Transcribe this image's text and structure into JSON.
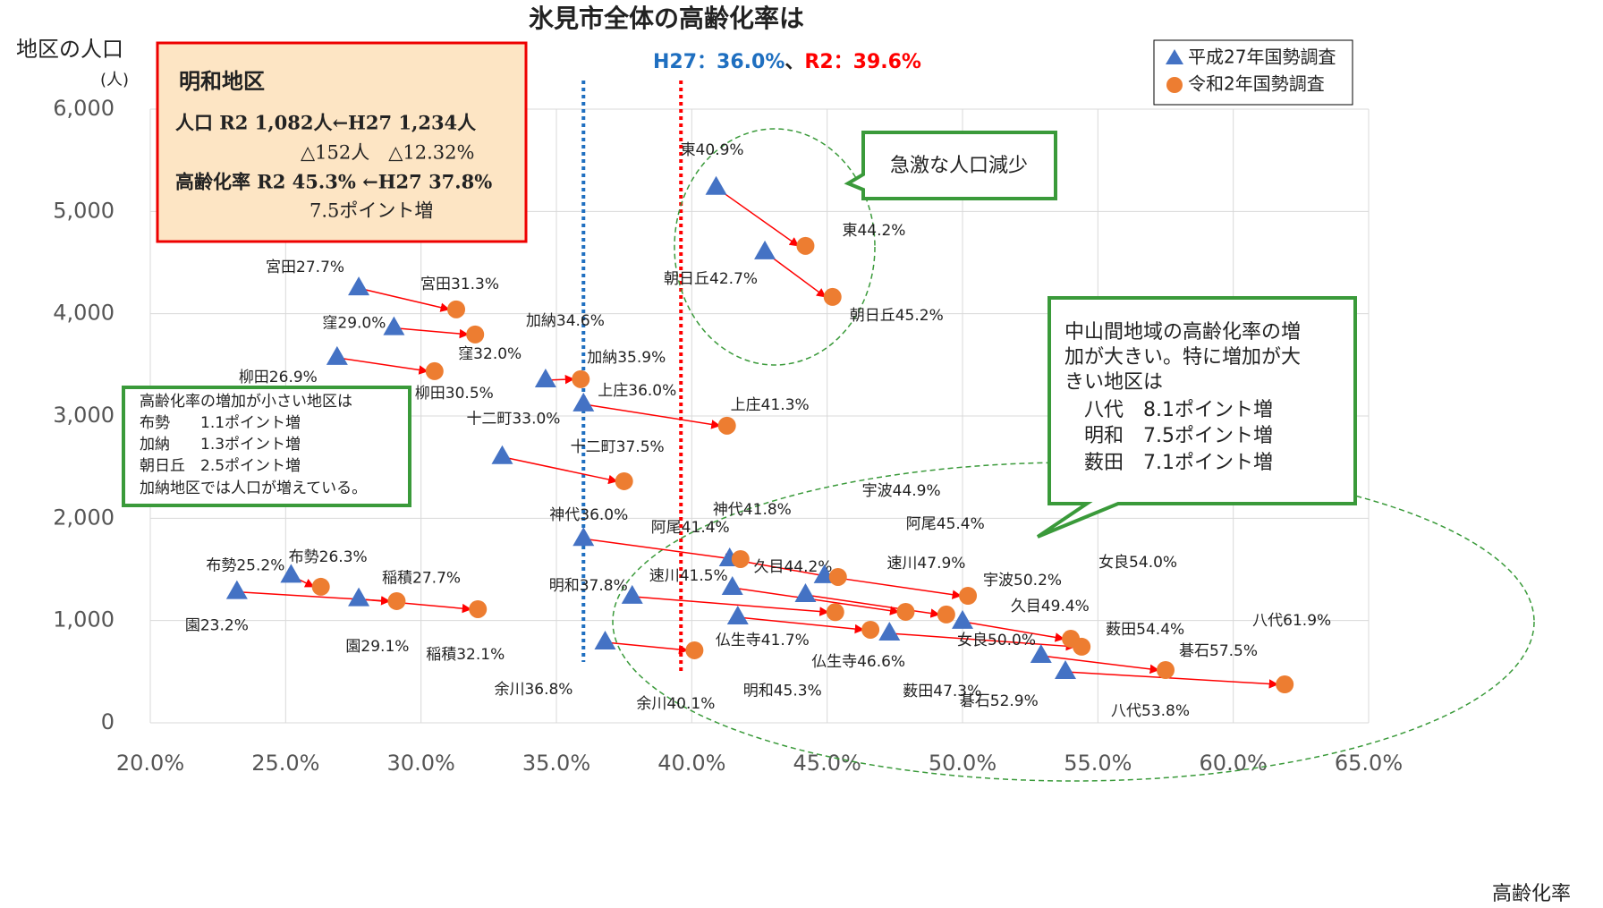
{
  "chart_data": {
    "type": "scatter",
    "title": "氷見市全体の高齢化率は",
    "subtitle_separator": "、",
    "reference_lines": [
      {
        "label": "H27：36.0%",
        "value": 36.0,
        "color": "#1f6fc0"
      },
      {
        "label": "R2：39.6%",
        "value": 39.6,
        "color": "#ff0000"
      }
    ],
    "ylabel": [
      "地区の人口",
      "(人)"
    ],
    "xlabel": "高齢化率",
    "xlim": [
      20,
      65
    ],
    "xticks": [
      {
        "value": 20,
        "label": "20.0%"
      },
      {
        "value": 25,
        "label": "25.0%"
      },
      {
        "value": 30,
        "label": "30.0%"
      },
      {
        "value": 35,
        "label": "35.0%"
      },
      {
        "value": 40,
        "label": "40.0%"
      },
      {
        "value": 45,
        "label": "45.0%"
      },
      {
        "value": 50,
        "label": "50.0%"
      },
      {
        "value": 55,
        "label": "55.0%"
      },
      {
        "value": 60,
        "label": "60.0%"
      },
      {
        "value": 65,
        "label": "65.0%"
      }
    ],
    "ylim": [
      0,
      6000
    ],
    "yticks": [
      0,
      {
        "value": 1000,
        "label": "1,000"
      },
      {
        "value": 2000,
        "label": "2,000"
      },
      {
        "value": 3000,
        "label": "3,000"
      },
      {
        "value": 4000,
        "label": "4,000"
      },
      {
        "value": 5000,
        "label": "5,000"
      },
      {
        "value": 6000,
        "label": "6,000"
      }
    ],
    "grid": true,
    "legend": "upper right",
    "series": [
      {
        "name": "平成27年国勢調査",
        "color": "#4472c4",
        "marker": "triangle",
        "x": [
          25.2,
          23.2,
          27.7,
          27.7,
          29.0,
          26.9,
          34.6,
          36.0,
          33.0,
          36.0,
          37.8,
          36.8,
          40.9,
          42.7,
          41.4,
          41.5,
          41.7,
          44.2,
          44.9,
          50.0,
          47.3,
          52.9,
          53.8
        ],
        "values": [
          1440,
          1280,
          1210,
          4250,
          3860,
          3570,
          3350,
          3115,
          2600,
          1800,
          1234,
          787,
          5232,
          4602,
          1601,
          1321,
          1032,
          1251,
          1435,
          989,
          875,
          656,
          499
        ],
        "labels": [
          "布勢25.2%",
          "園23.2%",
          "稲積27.7%",
          "宮田27.7%",
          "窪29.0%",
          "柳田26.9%",
          "加納34.6%",
          "上庄36.0%",
          "十二町33.0%",
          "神代36.0%",
          "明和37.8%",
          "余川36.8%",
          "東40.9%",
          "朝日丘42.7%",
          "阿尾41.4%",
          "速川41.5%",
          "仏生寺41.7%",
          "久目44.2%",
          "宇波44.9%",
          "女良50.0%",
          "薮田47.3%",
          "碁石52.9%",
          "八代53.8%"
        ]
      },
      {
        "name": "令和2年国勢調査",
        "color": "#ed7d31",
        "marker": "circle",
        "x": [
          26.3,
          29.1,
          32.1,
          31.3,
          32.0,
          30.5,
          35.9,
          41.3,
          37.5,
          41.8,
          45.3,
          40.1,
          44.2,
          45.2,
          45.4,
          47.9,
          46.6,
          49.4,
          50.2,
          54.0,
          54.4,
          57.5,
          61.9
        ],
        "values": [
          1330,
          1190,
          1111,
          4042,
          3797,
          3438,
          3360,
          2905,
          2362,
          1601,
          1082,
          709,
          4663,
          4164,
          1426,
          1085,
          910,
          1059,
          1242,
          822,
          744,
          516,
          376
        ],
        "labels": [
          "布勢26.3%",
          "園29.1%",
          "稲積32.1%",
          "宮田31.3%",
          "窪32.0%",
          "柳田30.5%",
          "加納35.9%",
          "上庄41.3%",
          "十二町37.5%",
          "神代41.8%",
          "明和45.3%",
          "余川40.1%",
          "東44.2%",
          "朝日丘45.2%",
          "阿尾45.4%",
          "速川47.9%",
          "仏生寺46.6%",
          "久目49.4%",
          "宇波50.2%",
          "女良54.0%",
          "薮田54.4%",
          "碁石57.5%",
          "八代61.9%"
        ]
      }
    ],
    "annotations": {
      "meiwa": {
        "title": "明和地区",
        "lines": [
          "人口 R2 1,082人←H27 1,234人",
          "△152人　△12.32%",
          "高齢化率 R2 45.3% ←H27 37.8%",
          "7.5ポイント増"
        ]
      },
      "small": {
        "lines": [
          "高齢化率の増加が小さい地区は",
          "布勢　　1.1ポイント増",
          "加納　　1.3ポイント増",
          "朝日丘　2.5ポイント増",
          "加納地区では人口が増えている。"
        ]
      },
      "large": {
        "lines": [
          "中山間地域の高齢化率の増",
          "加が大きい。特に増加が大",
          "きい地区は",
          "　八代　8.1ポイント増",
          "　明和　7.5ポイント増",
          "　薮田　7.1ポイント増"
        ]
      },
      "decline": {
        "text": "急激な人口減少"
      }
    }
  }
}
